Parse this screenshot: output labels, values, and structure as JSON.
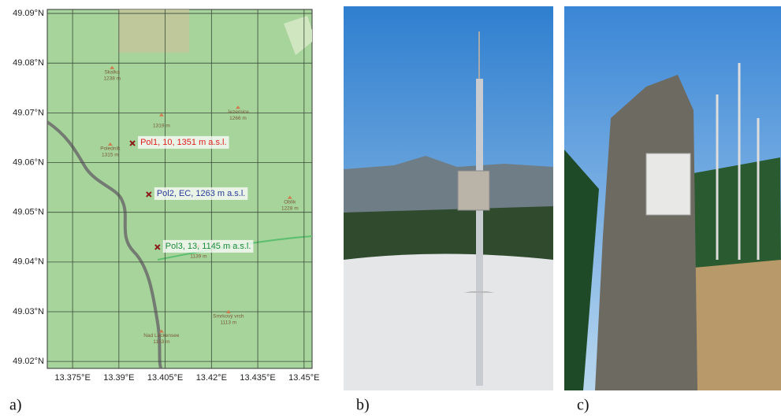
{
  "map": {
    "xlim": [
      13.3668,
      13.4526
    ],
    "ylim": [
      49.0186,
      49.0908
    ],
    "xticks": [
      {
        "value": 13.375,
        "label": "13.375°E"
      },
      {
        "value": 13.39,
        "label": "13.39°E"
      },
      {
        "value": 13.405,
        "label": "13.405°E"
      },
      {
        "value": 13.42,
        "label": "13.42°E"
      },
      {
        "value": 13.435,
        "label": "13.435°E"
      },
      {
        "value": 13.45,
        "label": "13.45°E"
      }
    ],
    "yticks": [
      {
        "value": 49.09,
        "label": "49.09°N"
      },
      {
        "value": 49.08,
        "label": "49.08°N"
      },
      {
        "value": 49.07,
        "label": "49.07°N"
      },
      {
        "value": 49.06,
        "label": "49.06°N"
      },
      {
        "value": 49.05,
        "label": "49.05°N"
      },
      {
        "value": 49.04,
        "label": "49.04°N"
      },
      {
        "value": 49.03,
        "label": "49.03°N"
      },
      {
        "value": 49.02,
        "label": "49.02°N"
      }
    ],
    "sites": [
      {
        "name": "Pol1, 10, 1351 m a.s.l.",
        "lon": 13.3944,
        "lat": 49.0639,
        "color": "#e02020"
      },
      {
        "name": "Pol2, EC, 1263 m a.s.l.",
        "lon": 13.3997,
        "lat": 49.0536,
        "color": "#2a3a9a"
      },
      {
        "name": "Pol3, 13, 1145 m a.s.l.",
        "lon": 13.4025,
        "lat": 49.043,
        "color": "#1a8a3a"
      }
    ],
    "places": [
      {
        "label": "Skalka",
        "elev": "1238 m",
        "lon": 13.3878,
        "lat": 49.0777
      },
      {
        "label": "Jezernice",
        "elev": "1266 m",
        "lon": 13.4286,
        "lat": 49.0697
      },
      {
        "label": "",
        "elev": "1319 m",
        "lon": 13.4038,
        "lat": 49.0682
      },
      {
        "label": "Poledník",
        "elev": "1315 m",
        "lon": 13.3872,
        "lat": 49.0623
      },
      {
        "label": "Oblík",
        "elev": "1228 m",
        "lon": 13.4454,
        "lat": 49.0516
      },
      {
        "label": "",
        "elev": "1139 m",
        "lon": 13.4158,
        "lat": 49.0419
      },
      {
        "label": "Smrkový vrch",
        "elev": "1113 m",
        "lon": 13.4255,
        "lat": 49.0286
      },
      {
        "label": "Nad Lackensee",
        "elev": "1153 m",
        "lon": 13.4038,
        "lat": 49.0247
      }
    ]
  },
  "panels": [
    "a)",
    "b)",
    "c)"
  ]
}
